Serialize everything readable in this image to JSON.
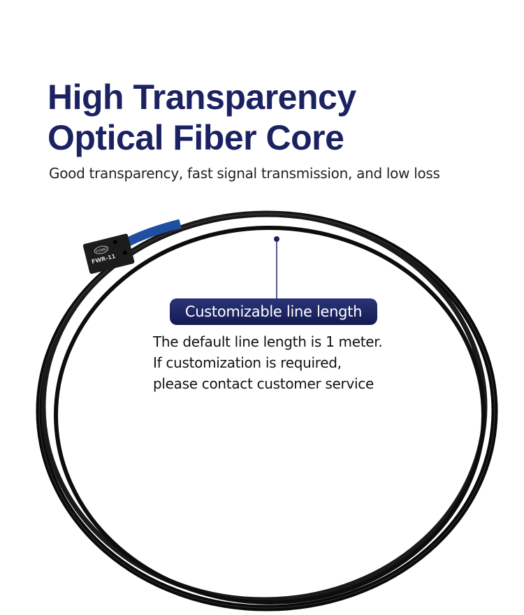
{
  "header": {
    "title_line1": "High Transparency",
    "title_line2": "Optical Fiber Core",
    "subtitle": "Good transparency, fast signal transmission, and low loss"
  },
  "product": {
    "brand": "FUWEI",
    "model": "FWR-11",
    "cable_color": "#111111",
    "sleeve_color": "#1f4fa0"
  },
  "callout": {
    "label": "Customizable line length",
    "lines": [
      "The default line length is 1 meter.",
      "If customization is required,",
      "please contact customer service"
    ]
  },
  "colors": {
    "accent": "#1b2262"
  }
}
